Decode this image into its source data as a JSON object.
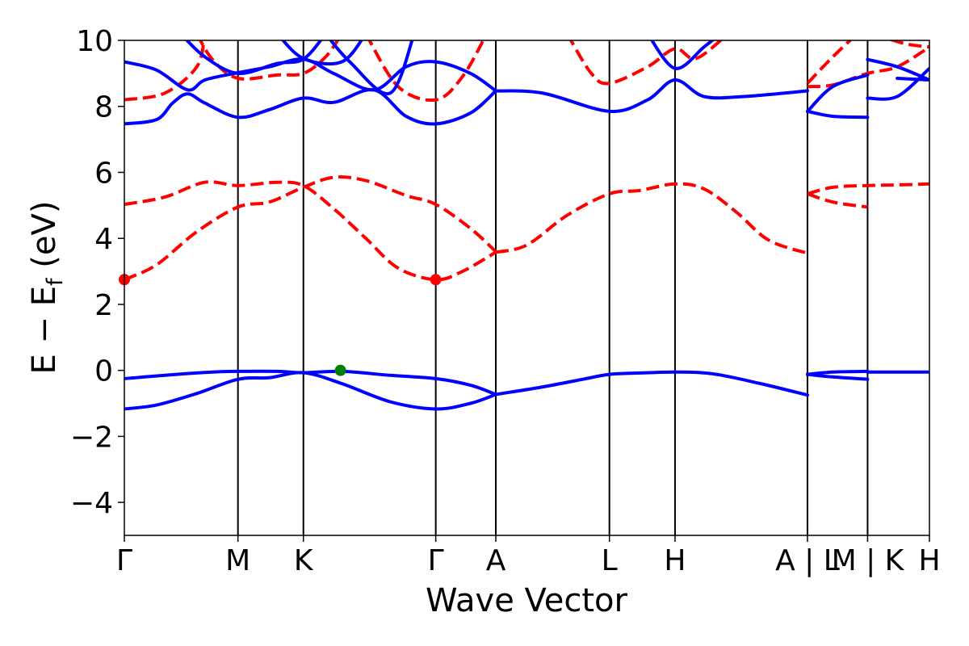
{
  "chart_data": {
    "type": "line",
    "xlabel": "Wave Vector",
    "ylabel": "E − E",
    "ylabel_sub": "f",
    "ylabel_unit": " (eV)",
    "ylim": [
      -5,
      10
    ],
    "yticks": [
      -4,
      -2,
      0,
      2,
      4,
      6,
      8,
      10
    ],
    "ytick_labels": [
      "−4",
      "−2",
      "0",
      "2",
      "4",
      "6",
      "8",
      "10"
    ],
    "xlim": [
      0,
      1
    ],
    "kpoints": [
      {
        "label": "Γ",
        "x": 0.0
      },
      {
        "label": "M",
        "x": 0.1411
      },
      {
        "label": "K",
        "x": 0.2224
      },
      {
        "label": "Γ",
        "x": 0.3868
      },
      {
        "label": "A",
        "x": 0.4614
      },
      {
        "label": "L",
        "x": 0.6025
      },
      {
        "label": "H",
        "x": 0.684
      },
      {
        "label": "A | L",
        "x": 0.8485
      },
      {
        "label": "M | K",
        "x": 0.9232
      },
      {
        "label": "H",
        "x": 1.0
      }
    ],
    "series": [
      {
        "kind": "valence",
        "color": "#0000ff",
        "style": "solid",
        "points": [
          [
            0.0,
            -0.25
          ],
          [
            0.06,
            -0.13
          ],
          [
            0.11,
            -0.05
          ],
          [
            0.1411,
            -0.03
          ],
          [
            0.19,
            -0.03
          ],
          [
            0.2224,
            -0.07
          ],
          [
            0.27,
            -0.03
          ],
          [
            0.33,
            -0.15
          ],
          [
            0.3868,
            -0.25
          ],
          [
            0.43,
            -0.45
          ],
          [
            0.4614,
            -0.73
          ]
        ]
      },
      {
        "kind": "valence",
        "color": "#0000ff",
        "style": "solid",
        "points": [
          [
            0.0,
            -1.17
          ],
          [
            0.04,
            -1.05
          ],
          [
            0.09,
            -0.7
          ],
          [
            0.1411,
            -0.27
          ],
          [
            0.18,
            -0.22
          ],
          [
            0.2224,
            -0.07
          ],
          [
            0.27,
            -0.4
          ],
          [
            0.33,
            -0.95
          ],
          [
            0.3868,
            -1.17
          ],
          [
            0.43,
            -1.0
          ],
          [
            0.4614,
            -0.73
          ]
        ]
      },
      {
        "kind": "valence",
        "color": "#0000ff",
        "style": "solid",
        "points": [
          [
            0.4614,
            -0.73
          ],
          [
            0.52,
            -0.5
          ],
          [
            0.5714,
            -0.26
          ],
          [
            0.6025,
            -0.12
          ],
          [
            0.64,
            -0.08
          ],
          [
            0.684,
            -0.05
          ],
          [
            0.73,
            -0.1
          ],
          [
            0.79,
            -0.4
          ],
          [
            0.8485,
            -0.75
          ]
        ]
      },
      {
        "kind": "valence",
        "color": "#0000ff",
        "style": "solid",
        "points": [
          [
            0.8485,
            -0.12
          ],
          [
            0.88,
            -0.05
          ],
          [
            0.9232,
            -0.03
          ]
        ]
      },
      {
        "kind": "valence",
        "color": "#0000ff",
        "style": "solid",
        "points": [
          [
            0.8485,
            -0.12
          ],
          [
            0.88,
            -0.2
          ],
          [
            0.9232,
            -0.27
          ]
        ]
      },
      {
        "kind": "valence",
        "color": "#0000ff",
        "style": "solid",
        "points": [
          [
            0.9232,
            -0.05
          ],
          [
            1.0,
            -0.05
          ]
        ]
      },
      {
        "kind": "conduction",
        "color": "#ff0000",
        "style": "dashed",
        "points": [
          [
            0.0,
            2.75
          ],
          [
            0.04,
            3.2
          ],
          [
            0.09,
            4.2
          ],
          [
            0.1411,
            4.95
          ],
          [
            0.18,
            5.1
          ],
          [
            0.2224,
            5.55
          ],
          [
            0.26,
            5.85
          ],
          [
            0.3,
            5.75
          ],
          [
            0.35,
            5.3
          ],
          [
            0.3868,
            5.03
          ],
          [
            0.43,
            4.3
          ],
          [
            0.4614,
            3.6
          ]
        ]
      },
      {
        "kind": "conduction",
        "color": "#ff0000",
        "style": "dashed",
        "points": [
          [
            0.0,
            5.03
          ],
          [
            0.05,
            5.25
          ],
          [
            0.1,
            5.7
          ],
          [
            0.1411,
            5.6
          ],
          [
            0.19,
            5.7
          ],
          [
            0.2224,
            5.6
          ],
          [
            0.26,
            4.9
          ],
          [
            0.3,
            4.0
          ],
          [
            0.34,
            3.1
          ],
          [
            0.3868,
            2.75
          ],
          [
            0.42,
            3.0
          ],
          [
            0.4614,
            3.58
          ]
        ]
      },
      {
        "kind": "conduction",
        "color": "#ff0000",
        "style": "dashed",
        "points": [
          [
            0.4614,
            3.58
          ],
          [
            0.5,
            3.8
          ],
          [
            0.55,
            4.7
          ],
          [
            0.6025,
            5.35
          ],
          [
            0.64,
            5.45
          ],
          [
            0.684,
            5.65
          ],
          [
            0.72,
            5.5
          ],
          [
            0.76,
            4.8
          ],
          [
            0.8,
            3.95
          ],
          [
            0.8485,
            3.55
          ]
        ]
      },
      {
        "kind": "conduction",
        "color": "#ff0000",
        "style": "dashed",
        "points": [
          [
            0.8485,
            5.35
          ],
          [
            0.88,
            5.55
          ],
          [
            0.9232,
            5.6
          ],
          [
            0.96,
            5.62
          ],
          [
            1.0,
            5.65
          ]
        ]
      },
      {
        "kind": "conduction",
        "color": "#ff0000",
        "style": "dashed",
        "points": [
          [
            0.8485,
            5.35
          ],
          [
            0.88,
            5.1
          ],
          [
            0.9232,
            4.95
          ]
        ]
      },
      {
        "kind": "conduction",
        "color": "#ff0000",
        "style": "dashed",
        "points": [
          [
            0.0,
            8.2
          ],
          [
            0.05,
            8.4
          ],
          [
            0.09,
            9.2
          ],
          [
            0.1,
            10.2
          ]
        ]
      },
      {
        "kind": "conduction",
        "color": "#ff0000",
        "style": "dashed",
        "points": [
          [
            0.09,
            10.2
          ],
          [
            0.11,
            9.4
          ],
          [
            0.1411,
            8.85
          ],
          [
            0.19,
            8.95
          ],
          [
            0.2224,
            9.0
          ],
          [
            0.25,
            9.5
          ],
          [
            0.27,
            10.2
          ]
        ]
      },
      {
        "kind": "conduction",
        "color": "#ff0000",
        "style": "dashed",
        "points": [
          [
            0.3,
            10.2
          ],
          [
            0.34,
            8.6
          ],
          [
            0.3868,
            8.2
          ],
          [
            0.42,
            8.9
          ],
          [
            0.45,
            10.2
          ]
        ]
      },
      {
        "kind": "conduction",
        "color": "#ff0000",
        "style": "dashed",
        "points": [
          [
            0.55,
            10.2
          ],
          [
            0.58,
            9.0
          ],
          [
            0.6025,
            8.7
          ],
          [
            0.65,
            9.2
          ],
          [
            0.684,
            9.75
          ],
          [
            0.71,
            9.45
          ],
          [
            0.75,
            10.2
          ]
        ]
      },
      {
        "kind": "conduction",
        "color": "#ff0000",
        "style": "dashed",
        "points": [
          [
            0.8485,
            8.7
          ],
          [
            0.88,
            9.5
          ],
          [
            0.91,
            10.2
          ]
        ]
      },
      {
        "kind": "conduction",
        "color": "#ff0000",
        "style": "dashed",
        "points": [
          [
            0.8485,
            8.6
          ],
          [
            0.88,
            8.65
          ],
          [
            0.9232,
            9.0
          ],
          [
            0.96,
            9.2
          ],
          [
            1.0,
            9.8
          ]
        ]
      },
      {
        "kind": "conduction",
        "color": "#ff0000",
        "style": "dashed",
        "points": [
          [
            0.93,
            10.2
          ],
          [
            0.97,
            9.9
          ],
          [
            1.0,
            9.8
          ]
        ]
      },
      {
        "kind": "conduction",
        "color": "#0000ff",
        "style": "solid",
        "points": [
          [
            0.0,
            7.47
          ],
          [
            0.04,
            7.6
          ],
          [
            0.06,
            8.1
          ],
          [
            0.0786,
            8.38
          ],
          [
            0.1,
            8.1
          ],
          [
            0.1411,
            7.67
          ],
          [
            0.18,
            7.9
          ],
          [
            0.2224,
            8.25
          ],
          [
            0.26,
            8.12
          ],
          [
            0.31,
            8.5
          ],
          [
            0.35,
            7.7
          ],
          [
            0.3868,
            7.47
          ],
          [
            0.43,
            7.8
          ],
          [
            0.4614,
            8.47
          ]
        ]
      },
      {
        "kind": "conduction",
        "color": "#0000ff",
        "style": "solid",
        "points": [
          [
            0.0,
            9.35
          ],
          [
            0.04,
            9.1
          ],
          [
            0.0786,
            8.5
          ],
          [
            0.1,
            8.8
          ],
          [
            0.1411,
            9.02
          ],
          [
            0.18,
            9.2
          ],
          [
            0.2224,
            9.43
          ],
          [
            0.26,
            9.0
          ],
          [
            0.31,
            8.5
          ],
          [
            0.35,
            9.2
          ],
          [
            0.3868,
            9.35
          ],
          [
            0.43,
            9.0
          ],
          [
            0.4614,
            8.47
          ]
        ]
      },
      {
        "kind": "conduction",
        "color": "#0000ff",
        "style": "solid",
        "points": [
          [
            0.07,
            10.2
          ],
          [
            0.1,
            9.5
          ],
          [
            0.1411,
            9.0
          ],
          [
            0.19,
            9.3
          ],
          [
            0.2224,
            9.43
          ],
          [
            0.25,
            10.2
          ]
        ]
      },
      {
        "kind": "conduction",
        "color": "#0000ff",
        "style": "solid",
        "points": [
          [
            0.19,
            10.2
          ],
          [
            0.2224,
            9.45
          ],
          [
            0.27,
            9.35
          ],
          [
            0.3,
            10.2
          ]
        ]
      },
      {
        "kind": "conduction",
        "color": "#0000ff",
        "style": "solid",
        "points": [
          [
            0.25,
            10.2
          ],
          [
            0.28,
            9.35
          ],
          [
            0.33,
            8.4
          ],
          [
            0.36,
            10.2
          ]
        ]
      },
      {
        "kind": "conduction",
        "color": "#0000ff",
        "style": "solid",
        "points": [
          [
            0.4614,
            8.47
          ],
          [
            0.52,
            8.4
          ],
          [
            0.6025,
            7.85
          ],
          [
            0.65,
            8.2
          ],
          [
            0.684,
            8.8
          ],
          [
            0.72,
            8.3
          ],
          [
            0.77,
            8.3
          ],
          [
            0.8485,
            8.47
          ]
        ]
      },
      {
        "kind": "conduction",
        "color": "#0000ff",
        "style": "solid",
        "points": [
          [
            0.65,
            10.2
          ],
          [
            0.684,
            9.15
          ],
          [
            0.72,
            9.8
          ],
          [
            0.74,
            10.2
          ]
        ]
      },
      {
        "kind": "conduction",
        "color": "#0000ff",
        "style": "solid",
        "points": [
          [
            0.8485,
            7.85
          ],
          [
            0.88,
            7.7
          ],
          [
            0.9232,
            7.67
          ]
        ]
      },
      {
        "kind": "conduction",
        "color": "#0000ff",
        "style": "solid",
        "points": [
          [
            0.8485,
            7.85
          ],
          [
            0.88,
            8.6
          ],
          [
            0.9232,
            8.95
          ]
        ]
      },
      {
        "kind": "conduction",
        "color": "#0000ff",
        "style": "solid",
        "points": [
          [
            0.9232,
            8.25
          ],
          [
            0.96,
            8.3
          ],
          [
            1.0,
            9.15
          ]
        ]
      },
      {
        "kind": "conduction",
        "color": "#0000ff",
        "style": "solid",
        "points": [
          [
            0.9232,
            9.42
          ],
          [
            0.96,
            9.2
          ],
          [
            1.0,
            8.8
          ]
        ]
      },
      {
        "kind": "conduction",
        "color": "#0000ff",
        "style": "solid",
        "points": [
          [
            0.96,
            8.85
          ],
          [
            1.0,
            8.8
          ]
        ]
      }
    ],
    "markers": [
      {
        "kind": "cbm",
        "color": "#ff0000",
        "x": 0.0,
        "y": 2.75
      },
      {
        "kind": "cbm",
        "color": "#ff0000",
        "x": 0.3868,
        "y": 2.75
      },
      {
        "kind": "vbm",
        "color": "#008000",
        "x": 0.2684,
        "y": 0.0
      }
    ]
  }
}
